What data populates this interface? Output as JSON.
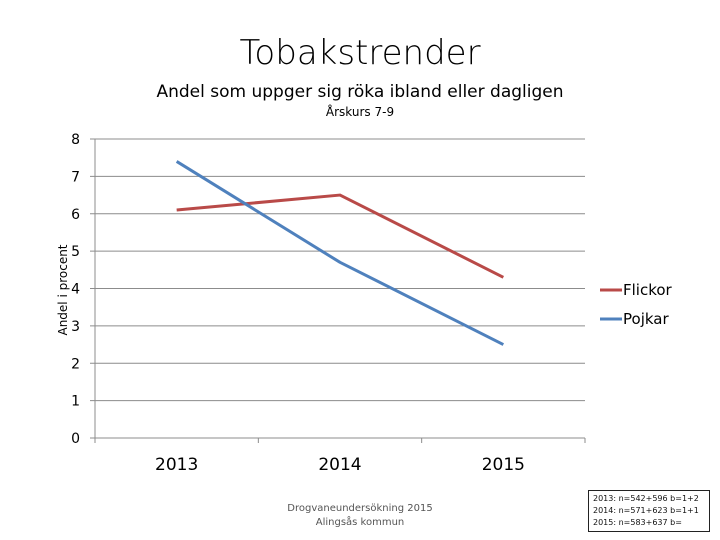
{
  "chart_data": {
    "type": "line",
    "title": "Tobakstrender",
    "subtitle": "Andel som uppger sig röka ibland eller dagligen",
    "subtitle2": "Årskurs 7-9",
    "ylabel": "Andel i procent",
    "xlabel": "",
    "categories": [
      "2013",
      "2014",
      "2015"
    ],
    "ylim": [
      0,
      8
    ],
    "yticks": [
      "0",
      "1",
      "2",
      "3",
      "4",
      "5",
      "6",
      "7",
      "8"
    ],
    "grid": true,
    "legend_position": "right",
    "series": [
      {
        "name": "Flickor",
        "color": "#b94a48",
        "values": [
          6.1,
          6.5,
          4.3
        ]
      },
      {
        "name": "Pojkar",
        "color": "#4f81bd",
        "values": [
          7.4,
          4.7,
          2.5
        ]
      }
    ],
    "source_lines": [
      "Drogvaneundersökning 2015",
      "Alingsås kommun"
    ],
    "notes": [
      "2013: n=542+596 b=1+2",
      "2014: n=571+623 b=1+1",
      "2015: n=583+637 b="
    ]
  }
}
